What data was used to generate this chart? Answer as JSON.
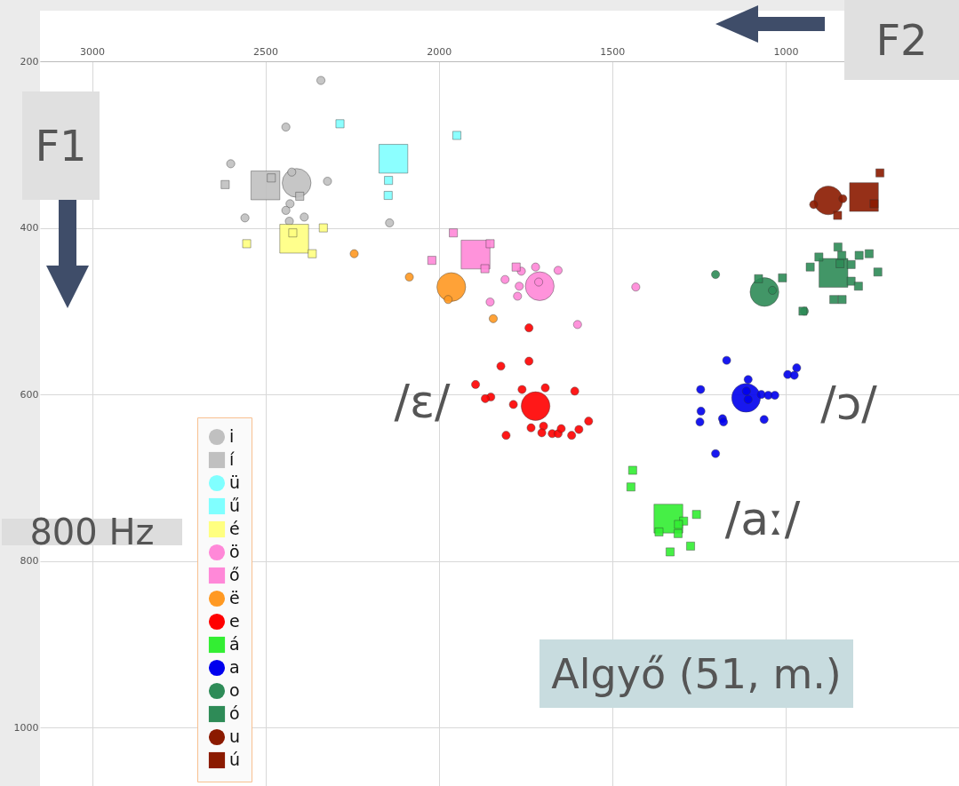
{
  "chart_data": {
    "type": "bubble",
    "xlim": [
      3150,
      500
    ],
    "ylim": [
      1070,
      200
    ],
    "xticks": [
      3000,
      2500,
      2000,
      1500,
      1000
    ],
    "yticks": [
      200,
      400,
      600,
      800,
      1000
    ],
    "grid": true,
    "legend": "bottom left",
    "annotations": [
      "F1",
      "F2",
      "800 Hz",
      "Algyő (51, m.)",
      "/ɛ/",
      "/ɔ/",
      "/aː/"
    ],
    "series": [
      {
        "name": "i",
        "color": "#c0c0c0",
        "marker": "circle",
        "x": [
          2410,
          2340,
          2441,
          2600,
          2424,
          2321,
          2429,
          2441,
          2559,
          2388,
          2431,
          2142
        ],
        "values": [
          346,
          223,
          279,
          323,
          333,
          344,
          371,
          379,
          388,
          387,
          392,
          394
        ],
        "sizes": [
          0.785,
          0.063,
          0.063,
          0.063,
          0.063,
          0.063,
          0.063,
          0.063,
          0.063,
          0.063,
          0.063,
          0.063
        ]
      },
      {
        "name": "í",
        "color": "#c0c0c0",
        "marker": "square",
        "x": [
          2500,
          2616,
          2483,
          2401
        ],
        "values": [
          349,
          348,
          340,
          362
        ],
        "sizes": [
          1,
          0.08,
          0.08,
          0.08
        ]
      },
      {
        "name": "ü",
        "color": "#80ffff",
        "marker": "circle"
      },
      {
        "name": "ű",
        "color": "#80ffff",
        "marker": "square",
        "x": [
          2131,
          2285,
          2145,
          2146,
          1948
        ],
        "values": [
          317,
          275,
          343,
          361,
          289
        ],
        "sizes": [
          1,
          0.08,
          0.08,
          0.08,
          0.08
        ]
      },
      {
        "name": "é",
        "color": "#ffff80",
        "marker": "square",
        "x": [
          2417,
          2421,
          2333,
          2554,
          2365
        ],
        "values": [
          413,
          406,
          400,
          419,
          431
        ],
        "sizes": [
          1,
          0.08,
          0.08,
          0.08,
          0.08
        ]
      },
      {
        "name": "ö",
        "color": "#ff88d8",
        "marker": "circle",
        "x": [
          1709,
          1712,
          1762,
          1721,
          1656,
          1809,
          1768,
          1773,
          1852,
          1432,
          1600
        ],
        "values": [
          470,
          465,
          452,
          447,
          451,
          462,
          470,
          482,
          489,
          471,
          516
        ],
        "sizes": [
          0.785,
          0.063,
          0.063,
          0.063,
          0.063,
          0.063,
          0.063,
          0.063,
          0.063,
          0.063,
          0.063
        ]
      },
      {
        "name": "ő",
        "color": "#ff88d8",
        "marker": "square",
        "x": [
          1894,
          1958,
          2020,
          1852,
          1867,
          1777
        ],
        "values": [
          432,
          406,
          439,
          419,
          449,
          447
        ],
        "sizes": [
          1,
          0.08,
          0.08,
          0.08,
          0.08,
          0.08
        ]
      },
      {
        "name": "ë",
        "color": "#ff9922",
        "marker": "circle",
        "x": [
          1964,
          2244,
          2085,
          1973,
          1843
        ],
        "values": [
          471,
          431,
          459,
          486,
          509
        ],
        "sizes": [
          0.785,
          0.063,
          0.063,
          0.063,
          0.063
        ]
      },
      {
        "name": "e",
        "color": "#ff0000",
        "marker": "circle",
        "x": [
          1721,
          1740,
          1740,
          1821,
          1894,
          1850,
          1866,
          1760,
          1693,
          1608,
          1785,
          1806,
          1734,
          1698,
          1703,
          1673,
          1656,
          1647,
          1617,
          1596,
          1568
        ],
        "values": [
          614,
          520,
          560,
          566,
          588,
          603,
          605,
          594,
          592,
          596,
          612,
          649,
          640,
          638,
          646,
          647,
          647,
          641,
          649,
          642,
          632
        ],
        "sizes": [
          0.785,
          0.063,
          0.063,
          0.063,
          0.063,
          0.063,
          0.063,
          0.063,
          0.063,
          0.063,
          0.063,
          0.063,
          0.063,
          0.063,
          0.063,
          0.063,
          0.063,
          0.063,
          0.063,
          0.063,
          0.063
        ]
      },
      {
        "name": "á",
        "color": "#33ee33",
        "marker": "square",
        "x": [
          1338,
          1441,
          1446,
          1257,
          1294,
          1309,
          1310,
          1365,
          1274,
          1333
        ],
        "values": [
          749,
          691,
          711,
          744,
          752,
          756,
          767,
          765,
          782,
          789
        ],
        "sizes": [
          1,
          0.08,
          0.08,
          0.08,
          0.08,
          0.08,
          0.08,
          0.08,
          0.08,
          0.08
        ]
      },
      {
        "name": "a",
        "color": "#0000ee",
        "marker": "circle",
        "x": [
          1114,
          1170,
          1108,
          1113,
          1108,
          1070,
          1050,
          1031,
          994,
          975,
          968,
          1245,
          1244,
          1247,
          1182,
          1179,
          1062,
          1202
        ],
        "values": [
          604,
          559,
          582,
          596,
          606,
          600,
          601,
          601,
          576,
          577,
          568,
          594,
          620,
          633,
          629,
          633,
          630,
          671
        ],
        "sizes": [
          0.785,
          0.063,
          0.063,
          0.063,
          0.063,
          0.063,
          0.063,
          0.063,
          0.063,
          0.063,
          0.063,
          0.063,
          0.063,
          0.063,
          0.063,
          0.063,
          0.063,
          0.063
        ]
      },
      {
        "name": "o",
        "color": "#2e8b57",
        "marker": "circle",
        "x": [
          1061,
          1202,
          1038,
          946
        ],
        "values": [
          477,
          456,
          475,
          500
        ],
        "sizes": [
          0.785,
          0.063,
          0.063,
          0.063
        ]
      },
      {
        "name": "ó",
        "color": "#2e8b57",
        "marker": "square",
        "x": [
          862,
          1078,
          1009,
          950,
          929,
          904,
          849,
          838,
          843,
          811,
          788,
          759,
          734,
          811,
          790,
          861,
          837
        ],
        "values": [
          454,
          461,
          460,
          500,
          447,
          435,
          423,
          433,
          443,
          444,
          433,
          431,
          453,
          464,
          470,
          486,
          486
        ],
        "sizes": [
          1,
          0.08,
          0.08,
          0.08,
          0.08,
          0.08,
          0.08,
          0.08,
          0.08,
          0.08,
          0.08,
          0.08,
          0.08,
          0.08,
          0.08,
          0.08,
          0.08
        ]
      },
      {
        "name": "u",
        "color": "#8b1a00",
        "marker": "circle",
        "x": [
          877,
          919,
          835
        ],
        "values": [
          367,
          372,
          365
        ],
        "sizes": [
          0.785,
          0.063,
          0.063
        ]
      },
      {
        "name": "ú",
        "color": "#8b1a00",
        "marker": "square",
        "x": [
          774,
          728,
          745,
          850
        ],
        "values": [
          363,
          334,
          371,
          385
        ],
        "sizes": [
          1,
          0.08,
          0.08,
          0.08
        ]
      }
    ]
  }
}
